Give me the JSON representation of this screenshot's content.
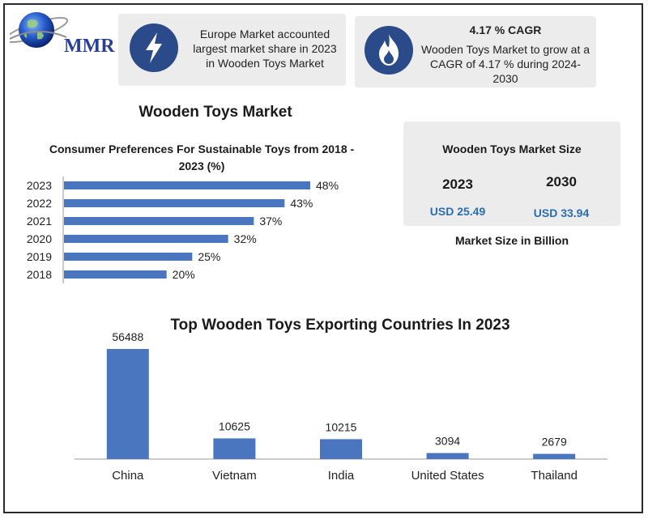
{
  "brand": {
    "logo_text": "MMR"
  },
  "info1": {
    "text": "Europe Market accounted largest market share in 2023 in Wooden Toys Market",
    "icon": "lightning-icon"
  },
  "info2": {
    "title": "4.17 % CAGR",
    "text": "Wooden Toys Market to grow at a CAGR of 4.17 % during 2024-2030",
    "icon": "flame-icon"
  },
  "main_title": "Wooden Toys Market",
  "market_size": {
    "title": "Wooden Toys Market Size",
    "year1": "2023",
    "value1": "USD 25.49",
    "year2": "2030",
    "value2": "USD 33.94",
    "note": "Market Size in Billion"
  },
  "colors": {
    "bar": "#4a76bf",
    "icon_bg": "#2a4a8a",
    "value_text": "#2a6db3",
    "panel": "#ececec"
  },
  "chart_data": [
    {
      "type": "bar",
      "orientation": "horizontal",
      "title": "Consumer Preferences For Sustainable Toys from 2018 - 2023 (%)",
      "categories": [
        "2023",
        "2022",
        "2021",
        "2020",
        "2019",
        "2018"
      ],
      "values": [
        48,
        43,
        37,
        32,
        25,
        20
      ],
      "labels": [
        "48%",
        "43%",
        "37%",
        "32%",
        "25%",
        "20%"
      ],
      "xlim": [
        0,
        50
      ]
    },
    {
      "type": "bar",
      "orientation": "vertical",
      "title": "Top Wooden Toys Exporting Countries In 2023",
      "categories": [
        "China",
        "Vietnam",
        "India",
        "United States",
        "Thailand"
      ],
      "values": [
        56488,
        10625,
        10215,
        3094,
        2679
      ],
      "labels": [
        "56488",
        "10625",
        "10215",
        "3094",
        "2679"
      ],
      "ylim": [
        0,
        60000
      ]
    }
  ]
}
